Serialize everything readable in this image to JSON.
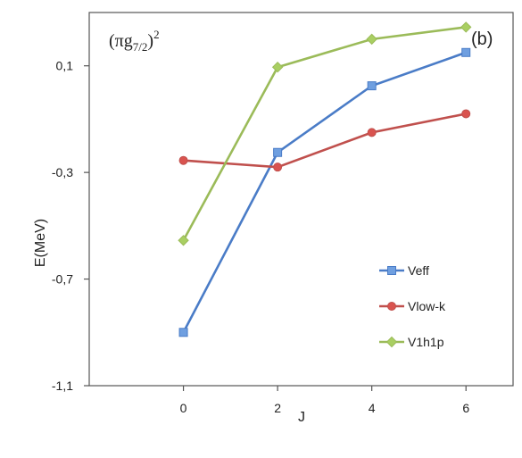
{
  "chart_data": {
    "type": "line",
    "panel_label": "(b)",
    "title": {
      "main_open": "(πg",
      "subscript": "7/2",
      "main_close": ")",
      "superscript": "2"
    },
    "xlabel": "J",
    "ylabel": "E(MeV)",
    "x": [
      0,
      2,
      4,
      6
    ],
    "x_tick_labels": [
      "0",
      "2",
      "4",
      "6"
    ],
    "xlim": [
      -2,
      7
    ],
    "ylim": [
      -1.1,
      0.3
    ],
    "y_ticks": [
      0.1,
      -0.3,
      -0.7,
      -1.1
    ],
    "y_tick_labels": [
      "0,1",
      "-0,3",
      "-0,7",
      "-1,1"
    ],
    "grid": false,
    "legend_placement": "right",
    "series": [
      {
        "name": "Veff",
        "marker": "square",
        "color": "#4a7cc7",
        "marker_fill": "#6f9fe0",
        "values": [
          -0.9,
          -0.225,
          0.025,
          0.15
        ]
      },
      {
        "name": "Vlow-k",
        "marker": "circle",
        "color": "#c0504d",
        "marker_fill": "#d9534f",
        "values": [
          -0.255,
          -0.28,
          -0.15,
          -0.08
        ]
      },
      {
        "name": "V1h1p",
        "marker": "diamond",
        "color": "#9bbb59",
        "marker_fill": "#a9cf62",
        "values": [
          -0.555,
          0.095,
          0.2,
          0.245
        ]
      }
    ]
  }
}
